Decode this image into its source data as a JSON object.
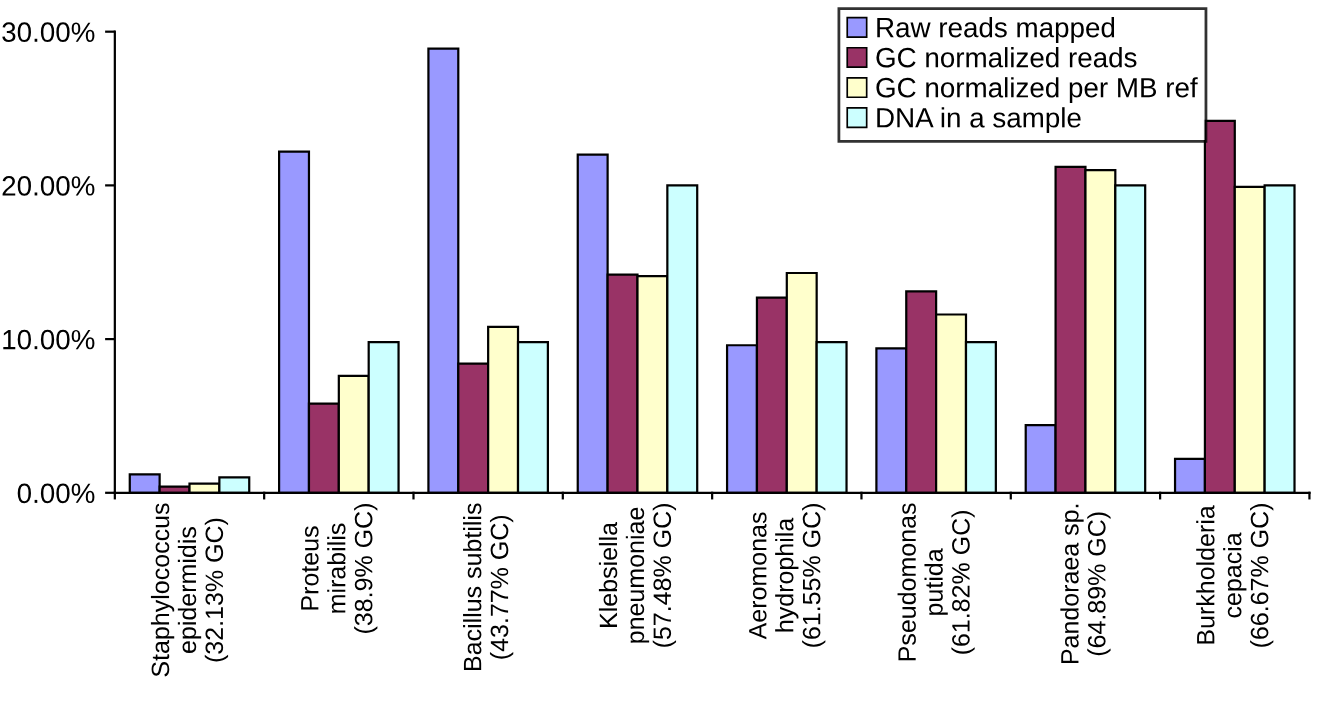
{
  "chart_data": {
    "type": "bar",
    "categories": [
      "Staphylococcus\nepidermidis\n(32.13% GC)",
      "Proteus\nmirabilis\n(38.9% GC)",
      "Bacillus subtilis\n(43.77% GC)",
      "Klebsiella\npneumoniae\n(57.48% GC)",
      "Aeromonas\nhydrophila\n(61.55% GC)",
      "Pseudomonas\nputida\n(61.82% GC)",
      "Pandoraea sp.\n(64.89% GC)",
      "Burkholderia\ncepacia\n(66.67% GC)"
    ],
    "series": [
      {
        "name": "Raw reads mapped",
        "color": "#9999ff",
        "values": [
          1.2,
          22.2,
          28.9,
          22.0,
          9.6,
          9.4,
          4.4,
          2.2
        ]
      },
      {
        "name": "GC normalized reads",
        "color": "#993366",
        "values": [
          0.4,
          5.8,
          8.4,
          14.2,
          12.7,
          13.1,
          21.2,
          24.2
        ]
      },
      {
        "name": "GC normalized per MB ref",
        "color": "#ffffcc",
        "values": [
          0.6,
          7.6,
          10.8,
          14.1,
          14.3,
          11.6,
          21.0,
          19.9
        ]
      },
      {
        "name": "DNA in a sample",
        "color": "#ccffff",
        "values": [
          1.0,
          9.8,
          9.8,
          20.0,
          9.8,
          9.8,
          20.0,
          20.0
        ]
      }
    ],
    "ylim": [
      0,
      30
    ],
    "yticks": [
      {
        "value": 0,
        "label": "0.00%"
      },
      {
        "value": 10,
        "label": "10.00%"
      },
      {
        "value": 20,
        "label": "20.00%"
      },
      {
        "value": 30,
        "label": "30.00%"
      }
    ],
    "grid": false,
    "legend": "top right"
  }
}
